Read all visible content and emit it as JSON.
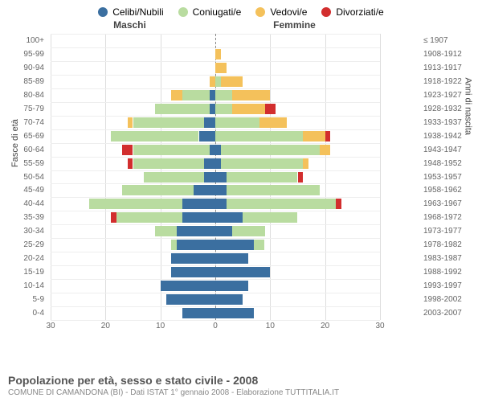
{
  "chart": {
    "type": "population-pyramid",
    "legend": [
      {
        "label": "Celibi/Nubili",
        "color": "#3b6fa0"
      },
      {
        "label": "Coniugati/e",
        "color": "#b9dca0"
      },
      {
        "label": "Vedovi/e",
        "color": "#f4c15b"
      },
      {
        "label": "Divorziati/e",
        "color": "#d22e2e"
      }
    ],
    "header_left": "Maschi",
    "header_right": "Femmine",
    "axis_left_title": "Fasce di età",
    "axis_right_title": "Anni di nascita",
    "xmax": 30,
    "xticks": [
      30,
      20,
      10,
      0,
      10,
      20,
      30
    ],
    "grid_color": "#dddddd",
    "zero_color": "#888888",
    "bg_color": "#ffffff",
    "rows": [
      {
        "age": "100+",
        "birth": "≤ 1907",
        "m": [
          0,
          0,
          0,
          0
        ],
        "f": [
          0,
          0,
          0,
          0
        ]
      },
      {
        "age": "95-99",
        "birth": "1908-1912",
        "m": [
          0,
          0,
          0,
          0
        ],
        "f": [
          0,
          0,
          1,
          0
        ]
      },
      {
        "age": "90-94",
        "birth": "1913-1917",
        "m": [
          0,
          0,
          0,
          0
        ],
        "f": [
          0,
          0,
          2,
          0
        ]
      },
      {
        "age": "85-89",
        "birth": "1918-1922",
        "m": [
          0,
          0,
          1,
          0
        ],
        "f": [
          0,
          1,
          4,
          0
        ]
      },
      {
        "age": "80-84",
        "birth": "1923-1927",
        "m": [
          1,
          5,
          2,
          0
        ],
        "f": [
          0,
          3,
          7,
          0
        ]
      },
      {
        "age": "75-79",
        "birth": "1928-1932",
        "m": [
          1,
          10,
          0,
          0
        ],
        "f": [
          0,
          3,
          6,
          2
        ]
      },
      {
        "age": "70-74",
        "birth": "1933-1937",
        "m": [
          2,
          13,
          1,
          0
        ],
        "f": [
          0,
          8,
          5,
          0
        ]
      },
      {
        "age": "65-69",
        "birth": "1938-1942",
        "m": [
          3,
          16,
          0,
          0
        ],
        "f": [
          0,
          16,
          4,
          1
        ]
      },
      {
        "age": "60-64",
        "birth": "1943-1947",
        "m": [
          1,
          14,
          0,
          2
        ],
        "f": [
          1,
          18,
          2,
          0
        ]
      },
      {
        "age": "55-59",
        "birth": "1948-1952",
        "m": [
          2,
          13,
          0,
          1
        ],
        "f": [
          1,
          15,
          1,
          0
        ]
      },
      {
        "age": "50-54",
        "birth": "1953-1957",
        "m": [
          2,
          11,
          0,
          0
        ],
        "f": [
          2,
          13,
          0,
          1
        ]
      },
      {
        "age": "45-49",
        "birth": "1958-1962",
        "m": [
          4,
          13,
          0,
          0
        ],
        "f": [
          2,
          17,
          0,
          0
        ]
      },
      {
        "age": "40-44",
        "birth": "1963-1967",
        "m": [
          6,
          17,
          0,
          0
        ],
        "f": [
          2,
          20,
          0,
          1
        ]
      },
      {
        "age": "35-39",
        "birth": "1968-1972",
        "m": [
          6,
          12,
          0,
          1
        ],
        "f": [
          5,
          10,
          0,
          0
        ]
      },
      {
        "age": "30-34",
        "birth": "1973-1977",
        "m": [
          7,
          4,
          0,
          0
        ],
        "f": [
          3,
          6,
          0,
          0
        ]
      },
      {
        "age": "25-29",
        "birth": "1978-1982",
        "m": [
          7,
          1,
          0,
          0
        ],
        "f": [
          7,
          2,
          0,
          0
        ]
      },
      {
        "age": "20-24",
        "birth": "1983-1987",
        "m": [
          8,
          0,
          0,
          0
        ],
        "f": [
          6,
          0,
          0,
          0
        ]
      },
      {
        "age": "15-19",
        "birth": "1988-1992",
        "m": [
          8,
          0,
          0,
          0
        ],
        "f": [
          10,
          0,
          0,
          0
        ]
      },
      {
        "age": "10-14",
        "birth": "1993-1997",
        "m": [
          10,
          0,
          0,
          0
        ],
        "f": [
          6,
          0,
          0,
          0
        ]
      },
      {
        "age": "5-9",
        "birth": "1998-2002",
        "m": [
          9,
          0,
          0,
          0
        ],
        "f": [
          5,
          0,
          0,
          0
        ]
      },
      {
        "age": "0-4",
        "birth": "2003-2007",
        "m": [
          6,
          0,
          0,
          0
        ],
        "f": [
          7,
          0,
          0,
          0
        ]
      }
    ]
  },
  "title": "Popolazione per età, sesso e stato civile - 2008",
  "subtitle": "COMUNE DI CAMANDONA (BI) - Dati ISTAT 1° gennaio 2008 - Elaborazione TUTTITALIA.IT"
}
